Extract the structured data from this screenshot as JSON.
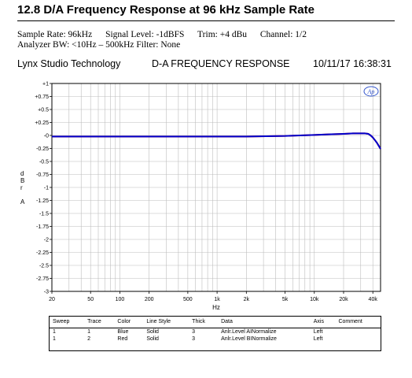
{
  "page": {
    "heading": "12.8 D/A Frequency Response at 96 kHz Sample Rate",
    "meta_line1": [
      "Sample Rate: 96kHz",
      "Signal Level: -1dBFS",
      "Trim: +4 dBu",
      "Channel: 1/2"
    ],
    "meta_line2": "Analyzer BW: <10Hz – 500kHz Filter: None",
    "company": "Lynx Studio Technology",
    "chart_title": "D-A FREQUENCY RESPONSE",
    "datetime": "10/11/17 16:38:31",
    "logo_text": "Ap"
  },
  "chart_data": {
    "type": "line",
    "title": "D-A FREQUENCY RESPONSE",
    "xlabel": "Hz",
    "ylabel": "d B r A",
    "x_scale": "log",
    "xlim": [
      20,
      48000
    ],
    "ylim": [
      -3,
      1
    ],
    "grid": true,
    "x_tick_labels": [
      "20",
      "50",
      "100",
      "200",
      "500",
      "1k",
      "2k",
      "5k",
      "10k",
      "20k",
      "40k"
    ],
    "x_tick_values": [
      20,
      50,
      100,
      200,
      500,
      1000,
      2000,
      5000,
      10000,
      20000,
      40000
    ],
    "y_tick_labels": [
      "+1",
      "+0.75",
      "+0.5",
      "+0.25",
      "-0",
      "-0.25",
      "-0.5",
      "-0.75",
      "-1",
      "-1.25",
      "-1.5",
      "-1.75",
      "-2",
      "-2.25",
      "-2.5",
      "-2.75",
      "-3"
    ],
    "y_tick_values": [
      1,
      0.75,
      0.5,
      0.25,
      0,
      -0.25,
      -0.5,
      -0.75,
      -1,
      -1.25,
      -1.5,
      -1.75,
      -2,
      -2.25,
      -2.5,
      -2.75,
      -3
    ],
    "series": [
      {
        "color": "#0000cc",
        "x": [
          20,
          50,
          100,
          200,
          500,
          1000,
          2000,
          5000,
          7000,
          10000,
          14000,
          20000,
          25000,
          30000,
          33000,
          36000,
          38000,
          40000,
          42000,
          44000,
          46000,
          48000
        ],
        "y": [
          -0.02,
          -0.02,
          -0.02,
          -0.02,
          -0.02,
          -0.02,
          -0.02,
          -0.01,
          0.0,
          0.01,
          0.02,
          0.03,
          0.04,
          0.04,
          0.04,
          0.03,
          0.0,
          -0.04,
          -0.09,
          -0.14,
          -0.2,
          -0.26
        ]
      },
      {
        "color": "#cc0000",
        "x": [
          20,
          50,
          100,
          200,
          500,
          1000,
          2000,
          5000,
          7000,
          10000,
          14000,
          20000,
          25000,
          30000,
          33000,
          36000,
          38000,
          40000,
          42000,
          44000,
          46000,
          48000
        ],
        "y": [
          -0.02,
          -0.02,
          -0.02,
          -0.02,
          -0.02,
          -0.02,
          -0.02,
          -0.01,
          0.0,
          0.01,
          0.02,
          0.03,
          0.04,
          0.04,
          0.04,
          0.03,
          0.0,
          -0.04,
          -0.09,
          -0.14,
          -0.2,
          -0.26
        ]
      }
    ]
  },
  "sweep_table": {
    "headers": [
      "Sweep",
      "Trace",
      "Color",
      "Line Style",
      "Thick",
      "Data",
      "Axis",
      "Comment"
    ],
    "rows": [
      [
        "1",
        "1",
        "Blue",
        "Solid",
        "3",
        "Anlr.Level AINormalize",
        "Left",
        ""
      ],
      [
        "1",
        "2",
        "Red",
        "Solid",
        "3",
        "Anlr.Level BINormalize",
        "Left",
        ""
      ]
    ]
  }
}
